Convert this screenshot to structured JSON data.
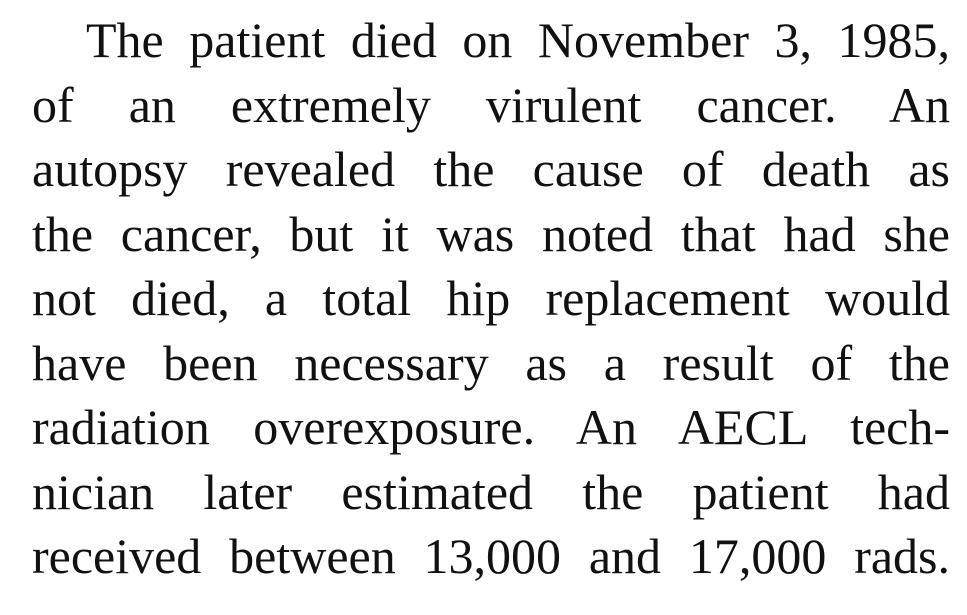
{
  "document": {
    "paragraph": {
      "lines": [
        "The patient died on November 3, 1985,",
        "of an extremely virulent cancer. An",
        "autopsy revealed the cause of death as",
        "the cancer, but it was noted that had she",
        "not died, a total hip replacement would",
        "have been necessary as a result of the",
        "radiation overexposure. An AECL tech-",
        "nician later estimated the patient had",
        "received between 13,000 and 17,000 rads."
      ]
    }
  }
}
